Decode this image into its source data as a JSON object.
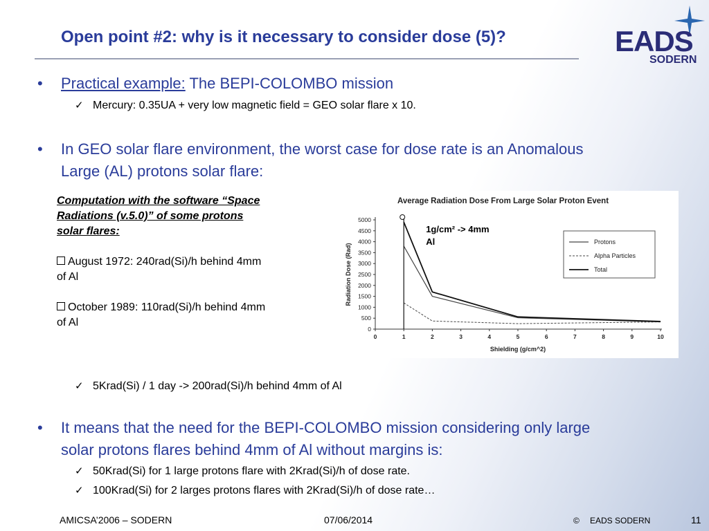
{
  "title": "Open point #2: why is it necessary to consider dose (5)?",
  "logo": {
    "word": "EADS",
    "sub": "SODERN"
  },
  "bullets": {
    "b1_underlined": "Practical example:",
    "b1_rest": " The BEPI-COLOMBO mission",
    "b1_sub": "Mercury: 0.35UA + very low magnetic field = GEO solar flare x 10.",
    "b2_line1": "In GEO solar flare environment, the worst case for dose rate is an Anomalous",
    "b2_line2": "Large (AL) protons solar flare:",
    "b2_sub": "5Krad(Si) / 1 day  -> 200rad(Si)/h behind 4mm of Al",
    "b3_line1": "It means that the need for the BEPI-COLOMBO mission considering only large",
    "b3_line2": "solar protons flares behind 4mm of Al without margins is:",
    "b3_sub1": "50Krad(Si) for 1 large protons flare with 2Krad(Si)/h of dose rate.",
    "b3_sub2": "100Krad(Si) for 2 larges protons flares with 2Krad(Si)/h of dose rate…",
    "bullet_glyph": "•",
    "check_glyph": "✓"
  },
  "computation": {
    "heading_l1": "Computation with the software “Space",
    "heading_l2": "Radiations (v.5.0)” of some protons",
    "heading_l3": "solar flares:",
    "item1_l1": "August 1972: 240rad(Si)/h behind 4mm",
    "item1_l2": "of Al",
    "item2_l1": "October 1989: 110rad(Si)/h behind 4mm",
    "item2_l2": "of Al"
  },
  "chart_data": {
    "type": "line",
    "title": "Average Radiation Dose From Large Solar Proton Event",
    "xlabel": "Shielding (g/cm^2)",
    "ylabel": "Radiation Dose (Rad)",
    "xlim": [
      0,
      10
    ],
    "ylim": [
      0,
      5000
    ],
    "xticks": [
      0,
      1,
      2,
      3,
      4,
      5,
      6,
      7,
      8,
      9,
      10
    ],
    "yticks": [
      0,
      500,
      1000,
      1500,
      2000,
      2500,
      3000,
      3500,
      4000,
      4500,
      5000
    ],
    "x": [
      1,
      2,
      5,
      10
    ],
    "series": [
      {
        "name": "Protons",
        "values": [
          3800,
          1500,
          520,
          330
        ],
        "style": "solid"
      },
      {
        "name": "Alpha Particles",
        "values": [
          1200,
          370,
          250,
          330
        ],
        "style": "dashed"
      },
      {
        "name": "Total",
        "values": [
          4900,
          1700,
          560,
          350
        ],
        "style": "solid-bold"
      }
    ],
    "legend_position": "top-right",
    "annotation": {
      "x": 1,
      "label_l1": "1g/cm² -> 4mm",
      "label_l2": "Al"
    },
    "grid": false
  },
  "footer": {
    "left": "AMICSA’2006 – SODERN",
    "date": "07/06/2014",
    "copyright": "©",
    "company": "EADS SODERN",
    "page": "11"
  }
}
